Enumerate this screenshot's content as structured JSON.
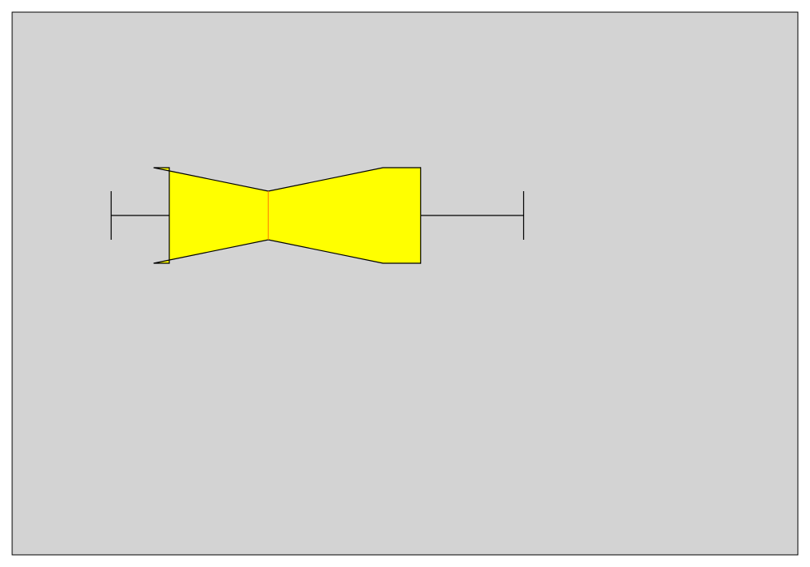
{
  "chart_data": {
    "type": "box",
    "orientation": "horizontal",
    "notched": true,
    "title": "",
    "xlabel": "",
    "ylabel": "",
    "axes_visible": false,
    "xlim": [
      0,
      1
    ],
    "series": [
      {
        "whisker_low": 0.126,
        "q1": 0.2,
        "notch_low": 0.18,
        "median": 0.326,
        "notch_high": 0.472,
        "q3": 0.52,
        "whisker_high": 0.651
      }
    ],
    "colors": {
      "plot_background": "#d3d3d3",
      "box_fill": "#ffff00",
      "median_line": "#ff8c00",
      "stroke": "#000000"
    }
  }
}
